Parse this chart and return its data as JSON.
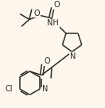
{
  "bg_color": "#fdf6ec",
  "line_color": "#2a2a2a",
  "line_width": 1.1,
  "font_size": 6.5,
  "figsize": [
    1.32,
    1.36
  ],
  "dpi": 100,
  "xlim": [
    0,
    132
  ],
  "ylim": [
    0,
    136
  ]
}
